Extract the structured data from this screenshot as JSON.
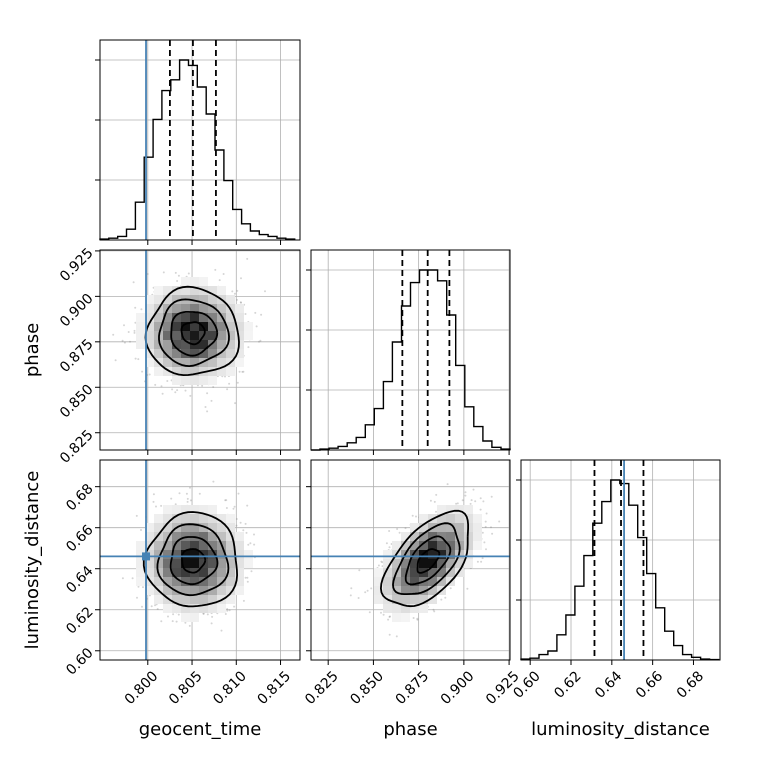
{
  "chart_data": {
    "type": "corner",
    "parameters": [
      "geocent_time",
      "phase",
      "luminosity_distance"
    ],
    "truths": {
      "geocent_time": 0.7998,
      "phase": null,
      "luminosity_distance": 0.646
    },
    "truth_color": "#4682b4",
    "grid": true,
    "axes": {
      "geocent_time": {
        "range": [
          0.7946,
          0.8172
        ],
        "ticks": [
          0.8,
          0.805,
          0.81,
          0.815
        ],
        "tick_labels": [
          "0.800",
          "0.805",
          "0.810",
          "0.815"
        ]
      },
      "phase": {
        "range": [
          0.8155,
          0.9255
        ],
        "ticks": [
          0.825,
          0.85,
          0.875,
          0.9,
          0.925
        ],
        "tick_labels": [
          "0.825",
          "0.850",
          "0.875",
          "0.900",
          "0.925"
        ]
      },
      "luminosity_distance": {
        "range": [
          0.5955,
          0.693
        ],
        "ticks": [
          0.6,
          0.62,
          0.64,
          0.66,
          0.68
        ],
        "tick_labels": [
          "0.60",
          "0.62",
          "0.64",
          "0.66",
          "0.68"
        ]
      }
    },
    "marginals": {
      "geocent_time": {
        "quantiles": [
          0.8025,
          0.8051,
          0.8077
        ],
        "edges": [
          0.7946,
          0.7956,
          0.7966,
          0.7976,
          0.7986,
          0.7996,
          0.8006,
          0.8016,
          0.8026,
          0.8036,
          0.8046,
          0.8056,
          0.8066,
          0.8076,
          0.8086,
          0.8096,
          0.8106,
          0.8116,
          0.8126,
          0.8136,
          0.8146,
          0.8156,
          0.8166
        ],
        "counts": [
          0.5,
          1,
          2,
          6,
          21,
          46,
          67,
          83,
          89,
          100,
          97,
          85,
          70,
          50,
          33,
          17,
          9,
          5,
          3,
          2,
          1,
          0.5
        ]
      },
      "phase": {
        "quantiles": [
          0.866,
          0.88,
          0.892
        ],
        "edges": [
          0.8155,
          0.8205,
          0.8255,
          0.8305,
          0.8355,
          0.8405,
          0.8455,
          0.8505,
          0.8555,
          0.8605,
          0.8655,
          0.8705,
          0.8755,
          0.8805,
          0.8855,
          0.8905,
          0.8955,
          0.9005,
          0.9055,
          0.9105,
          0.9155,
          0.9205,
          0.9255
        ],
        "counts": [
          0,
          0.5,
          1,
          2,
          4,
          7,
          14,
          23,
          38,
          60,
          80,
          93,
          100,
          100,
          94,
          75,
          47,
          24,
          13,
          5,
          1.5,
          0.5
        ]
      },
      "luminosity_distance": {
        "quantiles": [
          0.6315,
          0.6445,
          0.6555
        ],
        "edges": [
          0.5955,
          0.5999,
          0.6043,
          0.6087,
          0.6131,
          0.6175,
          0.6219,
          0.6263,
          0.6307,
          0.6351,
          0.6395,
          0.6439,
          0.6483,
          0.6527,
          0.6571,
          0.6615,
          0.6659,
          0.6703,
          0.6747,
          0.6791,
          0.6835,
          0.6879,
          0.6923
        ],
        "counts": [
          0.5,
          1,
          3,
          5,
          14,
          25,
          41,
          58,
          76,
          88,
          100,
          98,
          86,
          68,
          48,
          29,
          16,
          8,
          3,
          1.5,
          0.5,
          0.2
        ]
      }
    },
    "joints": [
      {
        "x": "geocent_time",
        "y": "phase",
        "center": [
          0.8051,
          0.88
        ],
        "sd": [
          0.0026,
          0.012
        ],
        "rho": 0.0
      },
      {
        "x": "geocent_time",
        "y": "luminosity_distance",
        "center": [
          0.8051,
          0.644
        ],
        "sd": [
          0.0026,
          0.0115
        ],
        "rho": 0.0
      },
      {
        "x": "phase",
        "y": "luminosity_distance",
        "center": [
          0.88,
          0.644
        ],
        "sd": [
          0.012,
          0.0115
        ],
        "rho": 0.55
      }
    ]
  }
}
